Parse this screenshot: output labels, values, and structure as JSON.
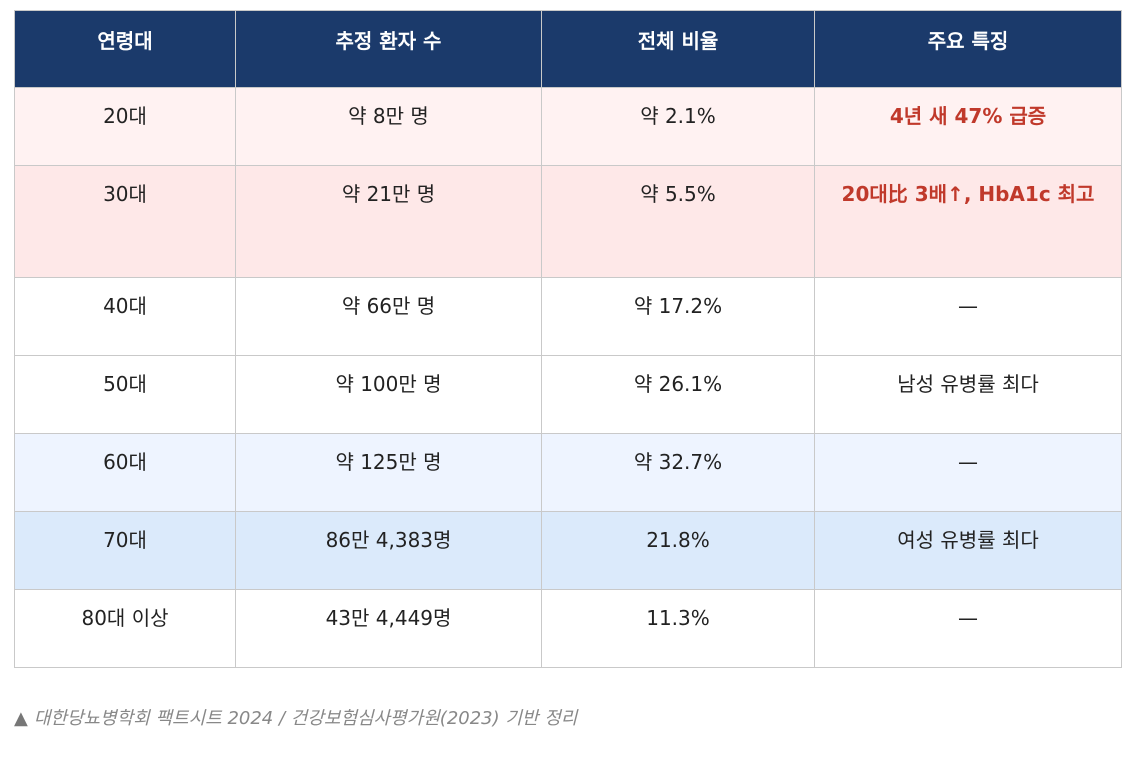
{
  "table": {
    "headers": [
      "연령대",
      "추정 환자 수",
      "전체 비율",
      "주요 특징"
    ],
    "rows": [
      {
        "age": "20대",
        "patients": "약 8만 명",
        "ratio": "약 2.1%",
        "feature": "4년 새 47% 급증"
      },
      {
        "age": "30대",
        "patients": "약 21만 명",
        "ratio": "약 5.5%",
        "feature": "20대比 3배↑, HbA1c 최고"
      },
      {
        "age": "40대",
        "patients": "약 66만 명",
        "ratio": "약 17.2%",
        "feature": "—"
      },
      {
        "age": "50대",
        "patients": "약 100만 명",
        "ratio": "약 26.1%",
        "feature": "남성 유병률 최다"
      },
      {
        "age": "60대",
        "patients": "약 125만 명",
        "ratio": "약 32.7%",
        "feature": "—"
      },
      {
        "age": "70대",
        "patients": "86만 4,383명",
        "ratio": "21.8%",
        "feature": "여성 유병률 최다"
      },
      {
        "age": "80대 이상",
        "patients": "43만 4,449명",
        "ratio": "11.3%",
        "feature": "—"
      }
    ]
  },
  "caption": {
    "marker": "▲",
    "text": "대한당뇨병학회 팩트시트 2024 / 건강보험심사평가원(2023) 기반 정리"
  },
  "colors": {
    "header_bg": "#1b3a6b",
    "highlight_text": "#c0392b",
    "row_20s_bg": "#fff2f2",
    "row_30s_bg": "#fee8e8",
    "row_60s_bg": "#eef4ff",
    "row_70s_bg": "#dbeafb"
  }
}
